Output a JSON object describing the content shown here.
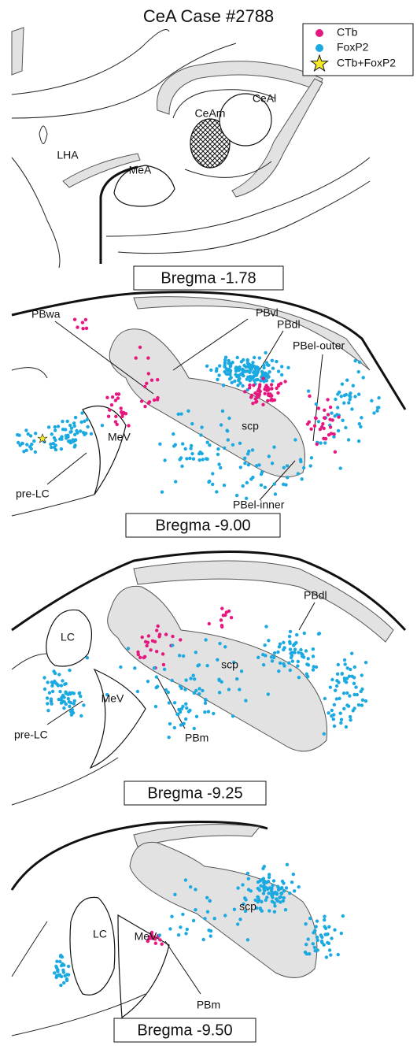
{
  "title": "CeA Case #2788",
  "legend": [
    {
      "label": "CTb",
      "color": "#e6177f"
    },
    {
      "label": "FoxP2",
      "color": "#1ba9e1"
    },
    {
      "label": "CTb+FoxP2",
      "color": "#f5e92a"
    }
  ],
  "panels": [
    {
      "bregma": "Bregma -1.78",
      "regions": [
        "CeAm",
        "CeAl",
        "LHA",
        "MeA"
      ]
    },
    {
      "bregma": "Bregma -9.00",
      "regions": [
        "PBwa",
        "PBvl",
        "PBdl",
        "PBel-outer",
        "scp",
        "MeV",
        "pre-LC",
        "PBel-inner"
      ]
    },
    {
      "bregma": "Bregma -9.25",
      "regions": [
        "PBdl",
        "LC",
        "scp",
        "MeV",
        "pre-LC",
        "PBm"
      ]
    },
    {
      "bregma": "Bregma -9.50",
      "regions": [
        "scp",
        "LC",
        "MeV",
        "PBm"
      ]
    }
  ]
}
